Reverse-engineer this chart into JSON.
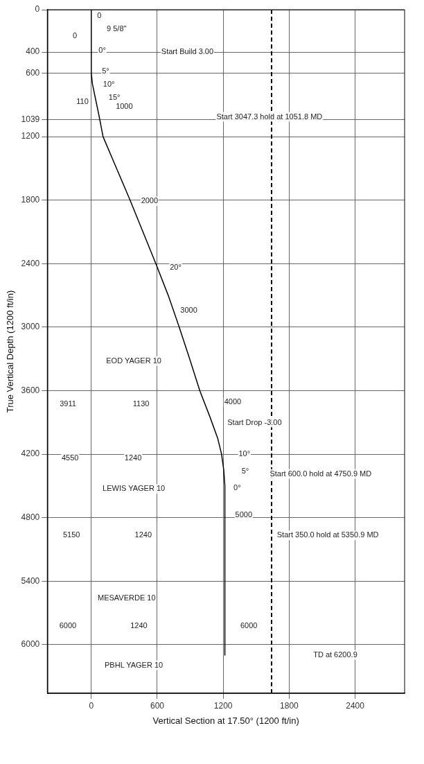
{
  "chart_data": {
    "type": "line",
    "xlabel": "Vertical Section at 17.50° (1200 ft/in)",
    "ylabel": "True Vertical Depth (1200 ft/in)",
    "x": [
      0,
      0,
      10,
      40,
      70,
      107,
      230,
      353,
      470,
      587,
      700,
      800,
      895,
      987,
      1080,
      1150,
      1185,
      1205,
      1215,
      1215
    ],
    "series": [
      {
        "color": "#000000",
        "values": [
          0,
          600,
          700,
          850,
          1000,
          1200,
          1500,
          1800,
          2100,
          2400,
          2700,
          3000,
          3300,
          3600,
          3850,
          4050,
          4200,
          4350,
          4500,
          6100
        ]
      }
    ],
    "xlim": [
      -400,
      2850
    ],
    "ylim": [
      6460,
      0
    ],
    "xticks": [
      0,
      600,
      1200,
      1800,
      2400
    ],
    "yticks": [
      0,
      400,
      600,
      1039,
      1200,
      1800,
      2400,
      3000,
      3600,
      4200,
      4800,
      5400,
      6000
    ],
    "grid": true,
    "marker": "none",
    "line_style": "solid",
    "ref_lines": [
      {
        "axis": "x",
        "value": 1640,
        "color": "#000000",
        "line_style": "dashed"
      }
    ],
    "annotations": [
      {
        "text": "0",
        "x": 73,
        "y": 60
      },
      {
        "text": "9 5/8\"",
        "x": 230,
        "y": 180
      },
      {
        "text": "0",
        "x": -150,
        "y": 250
      },
      {
        "text": "0°",
        "x": 100,
        "y": 387
      },
      "Start Build 3.00",
      {
        "text": "5°",
        "x": 130,
        "y": 580
      },
      {
        "text": "10°",
        "x": 160,
        "y": 710
      },
      {
        "text": "15°",
        "x": 210,
        "y": 830
      },
      {
        "text": "110",
        "x": -80,
        "y": 870
      },
      {
        "text": "1000",
        "x": 300,
        "y": 920
      },
      {
        "text": "Start 3047.3 hold at 1051.8 MD",
        "x": 1620,
        "y": 1013
      },
      {
        "text": "2000",
        "x": 530,
        "y": 1810
      },
      {
        "text": "20°",
        "x": 767,
        "y": 2440
      },
      {
        "text": "3000",
        "x": 887,
        "y": 2840
      },
      "EOD YAGER 10",
      {
        "text": "3911",
        "x": -213,
        "y": 3730
      },
      {
        "text": "1130",
        "x": 453,
        "y": 3730
      },
      {
        "text": "4000",
        "x": 1287,
        "y": 3710
      },
      "Start Drop -3.00",
      {
        "text": "10°",
        "x": 1393,
        "y": 4200
      },
      {
        "text": "5°",
        "x": 1400,
        "y": 4360
      },
      {
        "text": "0°",
        "x": 1327,
        "y": 4520
      },
      {
        "text": "4550",
        "x": -193,
        "y": 4240
      },
      {
        "text": "1240",
        "x": 380,
        "y": 4240
      },
      "Start 600.0 hold at 4750.9 MD",
      "LEWIS YAGER 10",
      {
        "text": "5000",
        "x": 1387,
        "y": 4774
      },
      "Start 350.0 hold at 5350.9 MD",
      {
        "text": "5150",
        "x": -180,
        "y": 4968
      },
      {
        "text": "1240",
        "x": 473,
        "y": 4968
      },
      "MESAVERDE 10",
      {
        "text": "6000",
        "x": -213,
        "y": 5826
      },
      {
        "text": "1240",
        "x": 433,
        "y": 5826
      },
      {
        "text": "6000",
        "x": 1433,
        "y": 5826
      },
      "PBHL YAGER 10",
      "TD at 6200.9"
    ]
  }
}
